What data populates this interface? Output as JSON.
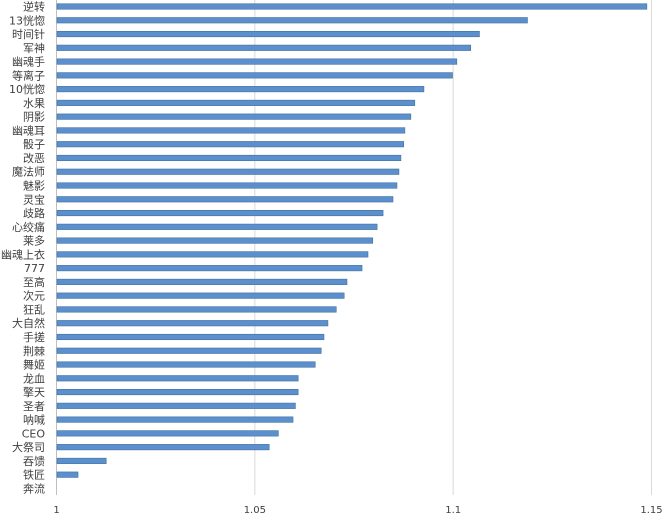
{
  "chart_data": {
    "type": "bar",
    "orientation": "horizontal",
    "title": "",
    "xlabel": "",
    "ylabel": "",
    "xlim": [
      1,
      1.15
    ],
    "xticks": [
      "1",
      "1.05",
      "1.1",
      "1.15"
    ],
    "grid": "vertical",
    "bar_color": "#5b8fce",
    "bar_border_color": "#41719c",
    "categories": [
      "逆转",
      "13恍惚",
      "时间针",
      "军神",
      "幽魂手",
      "等离子",
      "10恍惚",
      "水果",
      "阴影",
      "幽魂耳",
      "骰子",
      "改恶",
      "魔法师",
      "魅影",
      "灵宝",
      "歧路",
      "心绞痛",
      "莱多",
      "幽魂上衣",
      "777",
      "至高",
      "次元",
      "狂乱",
      "大自然",
      "手搓",
      "荆棘",
      "舞姬",
      "龙血",
      "擎天",
      "圣者",
      "呐喊",
      "CEO",
      "大祭司",
      "吞馈",
      "铁匠",
      "奔流"
    ],
    "values": [
      1.1487,
      1.1186,
      1.1065,
      1.1043,
      1.1008,
      1.0997,
      1.0925,
      1.0902,
      1.0892,
      1.0877,
      1.0874,
      1.0867,
      1.0862,
      1.0857,
      1.0847,
      1.0822,
      1.0807,
      1.0796,
      1.0784,
      1.0769,
      1.0731,
      1.0724,
      1.0704,
      1.0683,
      1.0673,
      1.0666,
      1.0651,
      1.0608,
      1.0608,
      1.0601,
      1.0595,
      1.0558,
      1.0535,
      1.0124,
      1.0053,
      1.0
    ]
  }
}
